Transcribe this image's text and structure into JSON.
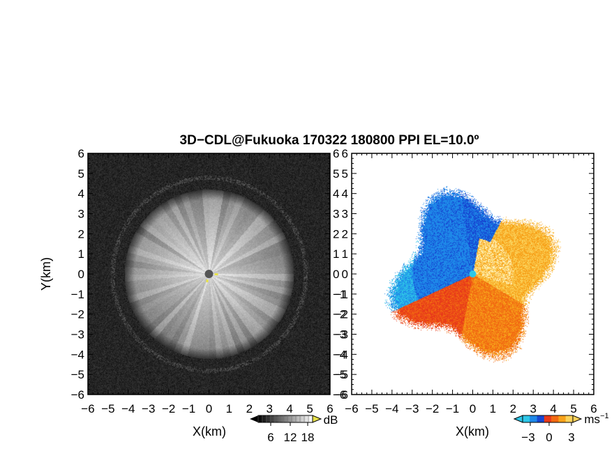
{
  "title": "3D−CDL@Fukuoka 170322 180800 PPI EL=10.0º",
  "chart_data": [
    {
      "type": "heatmap",
      "panel": "left",
      "variable": "SNR",
      "xlabel": "X(km)",
      "ylabel": "Y(km)",
      "xlim": [
        -6,
        6
      ],
      "ylim": [
        -6,
        6
      ],
      "xticks": [
        "−6",
        "−5",
        "−4",
        "−3",
        "−2",
        "−1",
        "0",
        "1",
        "2",
        "3",
        "4",
        "5",
        "6"
      ],
      "yticks": [
        "6",
        "5",
        "4",
        "3",
        "2",
        "1",
        "0",
        "−1",
        "−2",
        "−3",
        "−4",
        "−5",
        "−6"
      ],
      "echo_radius_km": 4.2,
      "colorbar": {
        "ticks": [
          "6",
          "12",
          "18"
        ],
        "unit": "dB",
        "colormap": "gray",
        "low": "#000000",
        "high": "#ffffff",
        "over": "#e8e24a"
      }
    },
    {
      "type": "heatmap",
      "panel": "right",
      "variable": "Doppler velocity",
      "xlabel": "X(km)",
      "xlim": [
        -6,
        6
      ],
      "ylim": [
        -6,
        6
      ],
      "xticks": [
        "−6",
        "−5",
        "−4",
        "−3",
        "−2",
        "−1",
        "0",
        "1",
        "2",
        "3",
        "4",
        "5",
        "6"
      ],
      "yticks": [
        "6",
        "5",
        "4",
        "3",
        "2",
        "1",
        "0",
        "−1",
        "−2",
        "−3",
        "−4",
        "−5",
        "−6"
      ],
      "echo_radius_km": 4.0,
      "colorbar": {
        "ticks": [
          "−3",
          "0",
          "3"
        ],
        "unit": "ms",
        "unit_exp": "−1",
        "colors": [
          "#2ec7e8",
          "#1e88e8",
          "#1646d2",
          "#e83a1a",
          "#f26a12",
          "#f7a21a",
          "#fbd25a"
        ]
      }
    }
  ]
}
